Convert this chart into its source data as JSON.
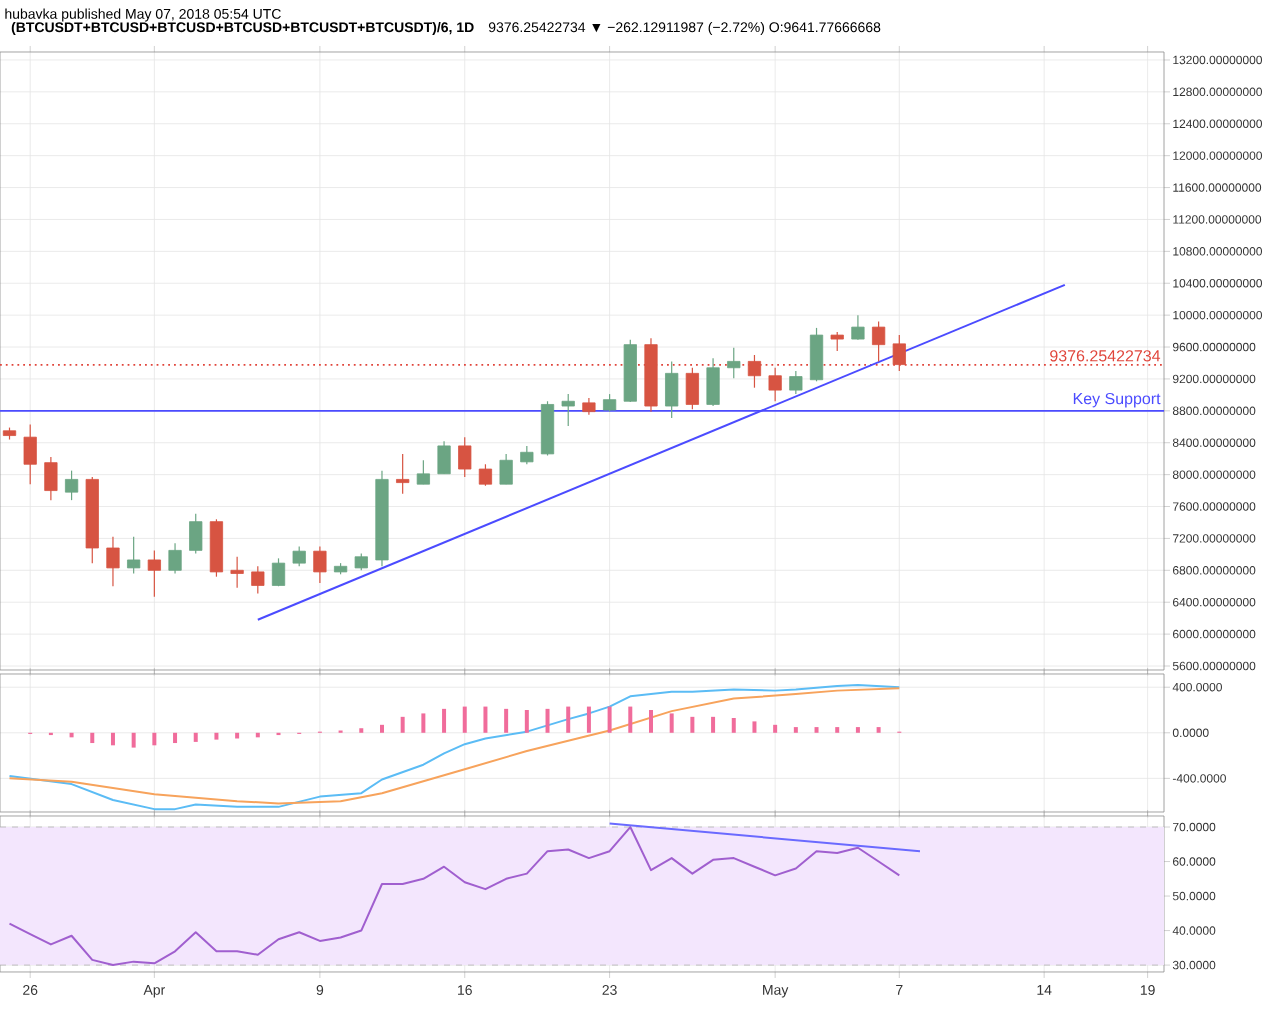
{
  "chart_data": [
    {
      "type": "candlestick",
      "title": "(BTCUSDT+BTCUSD+BTCUSD+BTCUSD+BTCUSDT+BTCUSDT)/6, 1D",
      "subtitle": "9376.25422734 ▼ −262.12911987 (−2.72%) O:9641.77666668",
      "annotations": [
        "hubavka published May 07, 2018 05:54 UTC"
      ],
      "x": [
        "2018-03-25",
        "2018-03-26",
        "2018-03-27",
        "2018-03-28",
        "2018-03-29",
        "2018-03-30",
        "2018-03-31",
        "2018-04-01",
        "2018-04-02",
        "2018-04-03",
        "2018-04-04",
        "2018-04-05",
        "2018-04-06",
        "2018-04-07",
        "2018-04-08",
        "2018-04-09",
        "2018-04-10",
        "2018-04-11",
        "2018-04-12",
        "2018-04-13",
        "2018-04-14",
        "2018-04-15",
        "2018-04-16",
        "2018-04-17",
        "2018-04-18",
        "2018-04-19",
        "2018-04-20",
        "2018-04-21",
        "2018-04-22",
        "2018-04-23",
        "2018-04-24",
        "2018-04-25",
        "2018-04-26",
        "2018-04-27",
        "2018-04-28",
        "2018-04-29",
        "2018-04-30",
        "2018-05-01",
        "2018-05-02",
        "2018-05-03",
        "2018-05-04",
        "2018-05-05",
        "2018-05-06",
        "2018-05-07"
      ],
      "ohlc": [
        [
          8550,
          8590,
          8440,
          8490
        ],
        [
          8470,
          8630,
          7880,
          8130
        ],
        [
          8150,
          8220,
          7680,
          7800
        ],
        [
          7780,
          8050,
          7680,
          7940
        ],
        [
          7940,
          7970,
          6890,
          7080
        ],
        [
          7080,
          7220,
          6600,
          6830
        ],
        [
          6830,
          7220,
          6760,
          6930
        ],
        [
          6930,
          7050,
          6470,
          6800
        ],
        [
          6800,
          7140,
          6760,
          7050
        ],
        [
          7050,
          7510,
          7010,
          7410
        ],
        [
          7410,
          7440,
          6720,
          6780
        ],
        [
          6800,
          6970,
          6580,
          6760
        ],
        [
          6780,
          6850,
          6510,
          6610
        ],
        [
          6610,
          6950,
          6600,
          6890
        ],
        [
          6890,
          7100,
          6850,
          7040
        ],
        [
          7040,
          7100,
          6640,
          6780
        ],
        [
          6780,
          6890,
          6750,
          6850
        ],
        [
          6830,
          7010,
          6800,
          6970
        ],
        [
          6930,
          8050,
          6850,
          7940
        ],
        [
          7940,
          8260,
          7760,
          7900
        ],
        [
          7880,
          8180,
          7880,
          8010
        ],
        [
          8010,
          8420,
          8010,
          8360
        ],
        [
          8360,
          8470,
          7970,
          8070
        ],
        [
          8070,
          8130,
          7860,
          7880
        ],
        [
          7880,
          8260,
          7880,
          8180
        ],
        [
          8160,
          8360,
          8130,
          8280
        ],
        [
          8260,
          8920,
          8240,
          8880
        ],
        [
          8860,
          9010,
          8610,
          8920
        ],
        [
          8900,
          8960,
          8750,
          8790
        ],
        [
          8810,
          9010,
          8790,
          8940
        ],
        [
          8920,
          9690,
          8910,
          9630
        ],
        [
          9630,
          9710,
          8790,
          8860
        ],
        [
          8860,
          9420,
          8710,
          9270
        ],
        [
          9270,
          9340,
          8820,
          8880
        ],
        [
          8880,
          9460,
          8860,
          9340
        ],
        [
          9340,
          9590,
          9210,
          9420
        ],
        [
          9420,
          9500,
          9090,
          9240
        ],
        [
          9240,
          9340,
          8920,
          9060
        ],
        [
          9060,
          9300,
          9010,
          9230
        ],
        [
          9190,
          9840,
          9170,
          9750
        ],
        [
          9750,
          9790,
          9550,
          9700
        ],
        [
          9700,
          10000,
          9690,
          9850
        ],
        [
          9850,
          9920,
          9420,
          9630
        ],
        [
          9640,
          9750,
          9300,
          9380
        ]
      ],
      "colors": [
        "#d75442",
        "#d75442",
        "#d75442",
        "#6ba583",
        "#d75442",
        "#d75442",
        "#6ba583",
        "#d75442",
        "#6ba583",
        "#6ba583",
        "#d75442",
        "#d75442",
        "#d75442",
        "#6ba583",
        "#6ba583",
        "#d75442",
        "#6ba583",
        "#6ba583",
        "#6ba583",
        "#d75442",
        "#6ba583",
        "#6ba583",
        "#d75442",
        "#d75442",
        "#6ba583",
        "#6ba583",
        "#6ba583",
        "#6ba583",
        "#d75442",
        "#6ba583",
        "#6ba583",
        "#d75442",
        "#6ba583",
        "#d75442",
        "#6ba583",
        "#6ba583",
        "#d75442",
        "#d75442",
        "#6ba583",
        "#6ba583",
        "#d75442",
        "#6ba583",
        "#d75442",
        "#d75442"
      ],
      "series": [
        {
          "type": "line",
          "x": [
            "2018-04-06",
            "2018-05-15"
          ],
          "values": [
            6180,
            10380
          ],
          "color": "#4b4bff"
        }
      ],
      "ref_lines": [
        {
          "axis": "y",
          "value": 8800,
          "label": "Key Support",
          "color": "#4b4bff"
        },
        {
          "axis": "y",
          "value": 9376.25422734,
          "label": "9376.25422734",
          "color": "#e0443a",
          "line_style": "dotted"
        }
      ],
      "xlim": [
        "2018-03-24T13:00",
        "2018-05-19T19:00"
      ],
      "ylim": [
        5550,
        13300
      ],
      "xticks": [
        {
          "value": "2018-03-26",
          "label": null
        },
        {
          "value": "2018-04-01",
          "label": null
        },
        {
          "value": "2018-04-09",
          "label": null
        },
        {
          "value": "2018-04-16",
          "label": null
        },
        {
          "value": "2018-04-23",
          "label": null
        },
        {
          "value": "2018-05-01",
          "label": null
        },
        {
          "value": "2018-05-07",
          "label": null
        },
        {
          "value": "2018-05-14",
          "label": null
        },
        {
          "value": "2018-05-19",
          "label": null
        }
      ],
      "yticks": [
        {
          "value": 5600,
          "label": "5600.00000000"
        },
        {
          "value": 6000,
          "label": "6000.00000000"
        },
        {
          "value": 6400,
          "label": "6400.00000000"
        },
        {
          "value": 6800,
          "label": "6800.00000000"
        },
        {
          "value": 7200,
          "label": "7200.00000000"
        },
        {
          "value": 7600,
          "label": "7600.00000000"
        },
        {
          "value": 8000,
          "label": "8000.00000000"
        },
        {
          "value": 8400,
          "label": "8400.00000000"
        },
        {
          "value": 8800,
          "label": "8800.00000000"
        },
        {
          "value": 9200,
          "label": "9200.00000000"
        },
        {
          "value": 9600,
          "label": "9600.00000000"
        },
        {
          "value": 10000,
          "label": "10000.00000000"
        },
        {
          "value": 10400,
          "label": "10400.00000000"
        },
        {
          "value": 10800,
          "label": "10800.00000000"
        },
        {
          "value": 11200,
          "label": "11200.00000000"
        },
        {
          "value": 11600,
          "label": "11600.00000000"
        },
        {
          "value": 12000,
          "label": "12000.00000000"
        },
        {
          "value": 12400,
          "label": "12400.00000000"
        },
        {
          "value": 12800,
          "label": "12800.00000000"
        },
        {
          "value": 13200,
          "label": "13200.00000000"
        }
      ],
      "grid": true,
      "tick_labels": "y"
    },
    {
      "type": "line",
      "series": [
        {
          "x": [
            "2018-03-25",
            "2018-03-28",
            "2018-03-30",
            "2018-04-01",
            "2018-04-02",
            "2018-04-03",
            "2018-04-05",
            "2018-04-07",
            "2018-04-09",
            "2018-04-11",
            "2018-04-12",
            "2018-04-14",
            "2018-04-15",
            "2018-04-16",
            "2018-04-17",
            "2018-04-19",
            "2018-04-21",
            "2018-04-22",
            "2018-04-23",
            "2018-04-24",
            "2018-04-26",
            "2018-04-27",
            "2018-04-29",
            "2018-05-01",
            "2018-05-02",
            "2018-05-04",
            "2018-05-05",
            "2018-05-07"
          ],
          "values": [
            -380,
            -450,
            -590,
            -670,
            -670,
            -630,
            -650,
            -650,
            -560,
            -530,
            -410,
            -280,
            -180,
            -100,
            -50,
            10,
            120,
            170,
            230,
            320,
            360,
            360,
            380,
            370,
            380,
            410,
            420,
            400
          ],
          "color": "#5bbcf5"
        },
        {
          "x": [
            "2018-03-25",
            "2018-03-28",
            "2018-04-01",
            "2018-04-05",
            "2018-04-07",
            "2018-04-10",
            "2018-04-12",
            "2018-04-16",
            "2018-04-19",
            "2018-04-23",
            "2018-04-26",
            "2018-04-29",
            "2018-05-02",
            "2018-05-04",
            "2018-05-07"
          ],
          "values": [
            -400,
            -430,
            -540,
            -600,
            -620,
            -600,
            -530,
            -320,
            -160,
            20,
            190,
            300,
            340,
            370,
            390
          ],
          "color": "#f7a35c"
        },
        {
          "type": "bar",
          "x": [
            "2018-03-26",
            "2018-03-27",
            "2018-03-28",
            "2018-03-29",
            "2018-03-30",
            "2018-03-31",
            "2018-04-01",
            "2018-04-02",
            "2018-04-03",
            "2018-04-04",
            "2018-04-05",
            "2018-04-06",
            "2018-04-07",
            "2018-04-08",
            "2018-04-09",
            "2018-04-10",
            "2018-04-11",
            "2018-04-12",
            "2018-04-13",
            "2018-04-14",
            "2018-04-15",
            "2018-04-16",
            "2018-04-17",
            "2018-04-18",
            "2018-04-19",
            "2018-04-20",
            "2018-04-21",
            "2018-04-22",
            "2018-04-23",
            "2018-04-24",
            "2018-04-25",
            "2018-04-26",
            "2018-04-27",
            "2018-04-28",
            "2018-04-29",
            "2018-04-30",
            "2018-05-01",
            "2018-05-02",
            "2018-05-03",
            "2018-05-04",
            "2018-05-05",
            "2018-05-06",
            "2018-05-07"
          ],
          "values": [
            -10,
            -20,
            -40,
            -90,
            -110,
            -130,
            -110,
            -90,
            -80,
            -60,
            -50,
            -40,
            -20,
            -10,
            10,
            20,
            40,
            70,
            140,
            170,
            210,
            230,
            230,
            210,
            200,
            210,
            230,
            230,
            230,
            230,
            200,
            170,
            140,
            140,
            130,
            100,
            70,
            50,
            50,
            50,
            50,
            50,
            10
          ],
          "color": "#f06c9b"
        }
      ],
      "xlim": [
        "2018-03-24T13:00",
        "2018-05-19T19:00"
      ],
      "ylim": [
        -695,
        516
      ],
      "xticks": [
        {
          "value": "2018-03-26",
          "label": null
        },
        {
          "value": "2018-04-01",
          "label": null
        },
        {
          "value": "2018-04-09",
          "label": null
        },
        {
          "value": "2018-04-16",
          "label": null
        },
        {
          "value": "2018-04-23",
          "label": null
        },
        {
          "value": "2018-05-01",
          "label": null
        },
        {
          "value": "2018-05-07",
          "label": null
        },
        {
          "value": "2018-05-14",
          "label": null
        },
        {
          "value": "2018-05-19",
          "label": null
        }
      ],
      "yticks": [
        {
          "value": -400,
          "label": "-400.0000"
        },
        {
          "value": 0,
          "label": "0.0000"
        },
        {
          "value": 400,
          "label": "400.0000"
        }
      ],
      "grid": true,
      "tick_labels": "y"
    },
    {
      "type": "line",
      "series": [
        {
          "x": [
            "2018-03-25",
            "2018-03-26",
            "2018-03-27",
            "2018-03-28",
            "2018-03-29",
            "2018-03-30",
            "2018-03-31",
            "2018-04-01",
            "2018-04-02",
            "2018-04-03",
            "2018-04-04",
            "2018-04-05",
            "2018-04-06",
            "2018-04-07",
            "2018-04-08",
            "2018-04-09",
            "2018-04-10",
            "2018-04-11",
            "2018-04-12",
            "2018-04-13",
            "2018-04-14",
            "2018-04-15",
            "2018-04-16",
            "2018-04-17",
            "2018-04-18",
            "2018-04-19",
            "2018-04-20",
            "2018-04-21",
            "2018-04-22",
            "2018-04-23",
            "2018-04-24",
            "2018-04-25",
            "2018-04-26",
            "2018-04-27",
            "2018-04-28",
            "2018-04-29",
            "2018-04-30",
            "2018-05-01",
            "2018-05-02",
            "2018-05-03",
            "2018-05-04",
            "2018-05-05",
            "2018-05-06",
            "2018-05-07"
          ],
          "values": [
            42,
            39,
            36,
            38.5,
            31.5,
            30,
            31,
            30.5,
            34,
            39.5,
            34,
            34,
            33,
            37.5,
            39.5,
            37,
            38,
            40,
            53.5,
            53.5,
            55,
            58.5,
            54,
            52,
            55,
            56.5,
            63,
            63.5,
            61,
            63,
            70,
            57.5,
            61,
            56.5,
            60.5,
            61,
            58.5,
            56,
            58,
            63,
            62.5,
            64,
            60,
            56
          ],
          "color": "#a05fcf"
        },
        {
          "x": [
            "2018-04-23",
            "2018-05-08"
          ],
          "values": [
            71,
            63
          ],
          "color": "#6a6aff"
        }
      ],
      "bands": [
        {
          "axis": "y",
          "from": 30,
          "to": 70,
          "color": "#f3e6fd"
        }
      ],
      "xlim": [
        "2018-03-24T13:00",
        "2018-05-19T19:00"
      ],
      "ylim": [
        28,
        73.2
      ],
      "xticks": [
        {
          "value": "2018-03-26",
          "label": "26"
        },
        {
          "value": "2018-04-01",
          "label": "Apr"
        },
        {
          "value": "2018-04-09",
          "label": "9"
        },
        {
          "value": "2018-04-16",
          "label": "16"
        },
        {
          "value": "2018-04-23",
          "label": "23"
        },
        {
          "value": "2018-05-01",
          "label": "May"
        },
        {
          "value": "2018-05-07",
          "label": "7"
        },
        {
          "value": "2018-05-14",
          "label": "14"
        },
        {
          "value": "2018-05-19",
          "label": "19"
        }
      ],
      "yticks": [
        {
          "value": 30,
          "label": "30.0000"
        },
        {
          "value": 40,
          "label": "40.0000"
        },
        {
          "value": 50,
          "label": "50.0000"
        },
        {
          "value": 60,
          "label": "60.0000"
        },
        {
          "value": 70,
          "label": "70.0000"
        }
      ],
      "grid": true
    }
  ]
}
